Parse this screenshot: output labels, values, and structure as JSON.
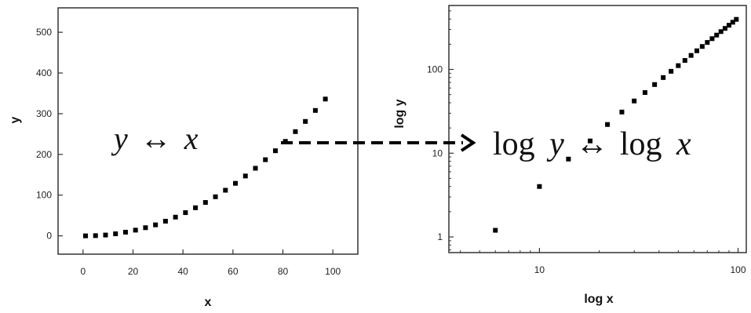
{
  "chart_data": [
    {
      "type": "scatter",
      "xlabel": "x",
      "ylabel": "y",
      "xlim": [
        -10,
        110
      ],
      "ylim": [
        -45,
        560
      ],
      "xticks": [
        0,
        20,
        40,
        60,
        80,
        100
      ],
      "yticks": [
        0,
        100,
        200,
        300,
        400,
        500
      ],
      "grid": false,
      "marker_color": "#000000",
      "series": [
        {
          "x": [
            1,
            5,
            9,
            13,
            17,
            21,
            25,
            29,
            33,
            37,
            41,
            45,
            49,
            53,
            57,
            61,
            65,
            69,
            73,
            77,
            81,
            85,
            89,
            93,
            97
          ],
          "y": [
            0,
            0.5,
            2,
            5,
            9,
            14,
            20,
            27,
            36,
            46,
            57,
            69,
            82,
            96,
            112,
            129,
            147,
            166,
            187,
            209,
            232,
            256,
            281,
            308,
            336
          ]
        }
      ],
      "annotation": {
        "lhs": "y",
        "arrow": "↔",
        "rhs": "x"
      }
    },
    {
      "type": "scatter",
      "xlabel": "log x",
      "ylabel": "log y",
      "xscale": "log",
      "yscale": "log",
      "xlim": [
        3.5,
        110
      ],
      "ylim": [
        0.65,
        580
      ],
      "xticks": [
        10,
        100
      ],
      "yticks": [
        1,
        10,
        100
      ],
      "xtick_labels": [
        "10",
        "100"
      ],
      "ytick_labels": [
        "1",
        "10",
        "100"
      ],
      "grid": false,
      "marker_color": "#000000",
      "series": [
        {
          "x": [
            6,
            10,
            14,
            18,
            22,
            26,
            30,
            34,
            38,
            42,
            46,
            50,
            54,
            58,
            62,
            66,
            70,
            74,
            78,
            82,
            86,
            90,
            94,
            98
          ],
          "y": [
            1.2,
            4,
            8.5,
            14,
            22,
            31,
            42,
            53,
            66,
            80,
            95,
            111,
            128,
            147,
            167,
            188,
            210,
            233,
            257,
            283,
            309,
            337,
            366,
            396
          ]
        }
      ],
      "annotation": {
        "lhs_prefix": "log",
        "lhs": "y",
        "arrow": "↔",
        "rhs_prefix": "log",
        "rhs": "x"
      }
    }
  ]
}
